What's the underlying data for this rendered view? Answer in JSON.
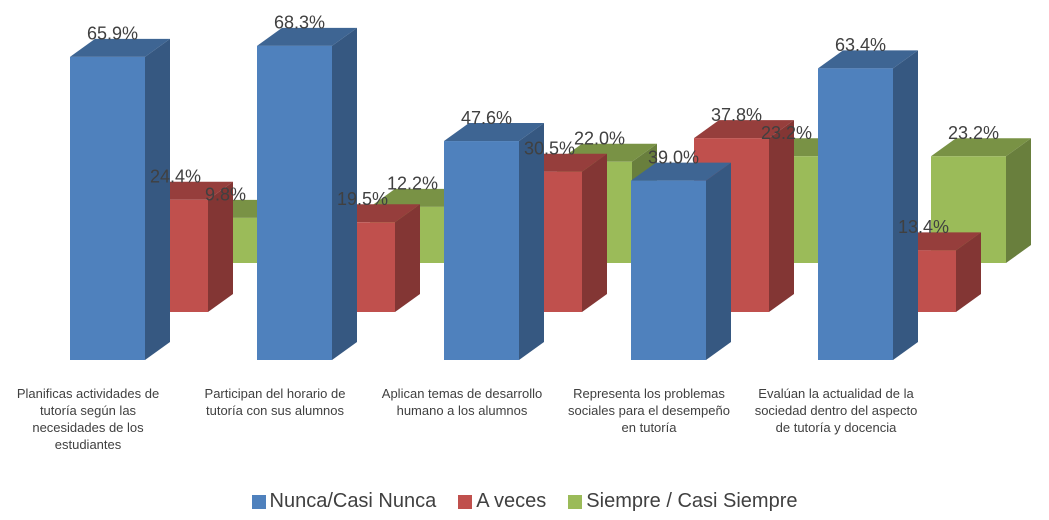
{
  "chart_data": {
    "type": "bar3d",
    "categories": [
      "Planificas actividades de tutoría según las necesidades de los estudiantes",
      "Participan del horario de tutoría con sus alumnos",
      "Aplican temas de desarrollo humano a los alumnos",
      "Representa los problemas sociales para el desempeño en tutoría",
      "Evalúan la actualidad de la sociedad dentro del aspecto de tutoría y docencia"
    ],
    "series": [
      {
        "name": "Nunca/Casi Nunca",
        "color": "#4f81bd",
        "values": [
          65.9,
          68.3,
          47.6,
          39.0,
          63.4
        ],
        "value_labels": [
          "65.9%",
          "68.3%",
          "47.6%",
          "39.0%",
          "63.4%"
        ]
      },
      {
        "name": "A veces",
        "color": "#c0504d",
        "values": [
          24.4,
          19.5,
          30.5,
          37.8,
          13.4
        ],
        "value_labels": [
          "24.4%",
          "19.5%",
          "30.5%",
          "37.8%",
          "13.4%"
        ]
      },
      {
        "name": "Siempre / Casi Siempre",
        "color": "#9bbb59",
        "values": [
          9.8,
          12.2,
          22.0,
          23.2,
          23.2
        ],
        "value_labels": [
          "9.8%",
          "12.2%",
          "22.0%",
          "23.2%",
          "23.2%"
        ]
      }
    ],
    "legend": "bottom"
  }
}
